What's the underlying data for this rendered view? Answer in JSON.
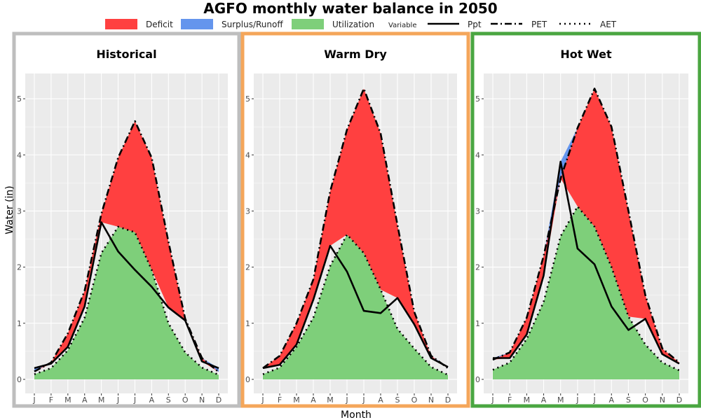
{
  "title": "AGFO monthly water balance in 2050",
  "legend": {
    "fill_items": [
      {
        "label": "Deficit",
        "color": "#ff4040"
      },
      {
        "label": "Surplus/Runoff",
        "color": "#6495ed"
      },
      {
        "label": "Utilization",
        "color": "#7ecf7a"
      }
    ],
    "variable_title": "Variable",
    "line_items": [
      {
        "label": "Ppt",
        "style": "solid"
      },
      {
        "label": "PET",
        "style": "dashdot"
      },
      {
        "label": "AET",
        "style": "dotted"
      }
    ]
  },
  "chart_data": {
    "type": "area",
    "title": "AGFO monthly water balance in 2050",
    "xlabel": "Month",
    "ylabel": "Water (in)",
    "ylim": [
      -0.25,
      5.45
    ],
    "yticks": [
      0,
      1,
      2,
      3,
      4,
      5
    ],
    "categories": [
      "J",
      "F",
      "M",
      "A",
      "M",
      "J",
      "J",
      "A",
      "S",
      "O",
      "N",
      "D"
    ],
    "grid": true,
    "panels": [
      {
        "name": "Historical",
        "border_color": "#bebebe",
        "series": [
          {
            "name": "Ppt",
            "values": [
              0.2,
              0.28,
              0.58,
              1.3,
              2.8,
              2.28,
              1.95,
              1.65,
              1.28,
              1.05,
              0.32,
              0.2
            ]
          },
          {
            "name": "PET",
            "values": [
              0.14,
              0.3,
              0.82,
              1.58,
              2.95,
              3.95,
              4.6,
              3.95,
              2.45,
              1.08,
              0.38,
              0.13
            ]
          },
          {
            "name": "AET",
            "values": [
              0.09,
              0.2,
              0.52,
              1.1,
              2.25,
              2.72,
              2.62,
              1.95,
              1.0,
              0.48,
              0.21,
              0.08
            ]
          }
        ]
      },
      {
        "name": "Warm Dry",
        "border_color": "#f4a65a",
        "series": [
          {
            "name": "Ppt",
            "values": [
              0.2,
              0.26,
              0.62,
              1.42,
              2.38,
              1.92,
              1.22,
              1.18,
              1.45,
              0.98,
              0.38,
              0.22
            ]
          },
          {
            "name": "PET",
            "values": [
              0.2,
              0.42,
              1.0,
              1.78,
              3.35,
              4.45,
              5.18,
              4.38,
              2.75,
              1.2,
              0.42,
              0.2
            ]
          },
          {
            "name": "AET",
            "values": [
              0.09,
              0.21,
              0.58,
              1.1,
              2.02,
              2.58,
              2.25,
              1.6,
              0.9,
              0.55,
              0.22,
              0.08
            ]
          }
        ]
      },
      {
        "name": "Hot Wet",
        "border_color": "#4aa641",
        "series": [
          {
            "name": "Ppt",
            "values": [
              0.38,
              0.38,
              0.8,
              1.85,
              3.88,
              2.33,
              2.05,
              1.3,
              0.88,
              1.08,
              0.45,
              0.28
            ]
          },
          {
            "name": "PET",
            "values": [
              0.35,
              0.48,
              1.1,
              2.2,
              3.58,
              4.48,
              5.18,
              4.5,
              3.0,
              1.5,
              0.55,
              0.3
            ]
          },
          {
            "name": "AET",
            "values": [
              0.17,
              0.3,
              0.72,
              1.38,
              2.55,
              3.08,
              2.72,
              2.0,
              1.12,
              0.62,
              0.3,
              0.16
            ]
          }
        ]
      }
    ]
  }
}
